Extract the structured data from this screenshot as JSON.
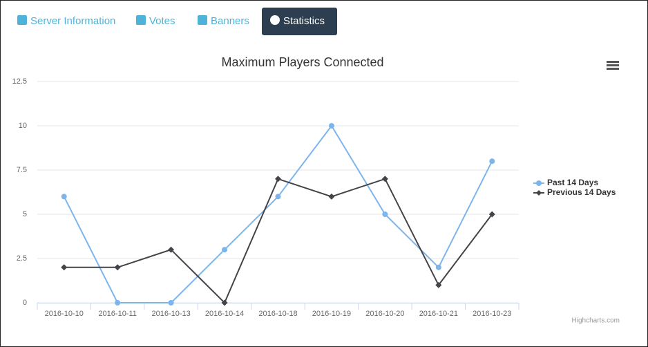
{
  "tabs": [
    "Server Information",
    "Votes",
    "Banners",
    "Statistics"
  ],
  "chart_data": {
    "type": "line",
    "title": "Maximum Players Connected",
    "categories": [
      "2016-10-10",
      "2016-10-11",
      "2016-10-13",
      "2016-10-14",
      "2016-10-18",
      "2016-10-19",
      "2016-10-20",
      "2016-10-21",
      "2016-10-23"
    ],
    "series": [
      {
        "name": "Past 14 Days",
        "color": "#7cb5ec",
        "marker": "circle",
        "values": [
          6,
          0,
          0,
          3,
          6,
          10,
          5,
          2,
          8
        ]
      },
      {
        "name": "Previous 14 Days",
        "color": "#434348",
        "marker": "diamond",
        "values": [
          2,
          2,
          3,
          0,
          7,
          6,
          7,
          1,
          5
        ]
      }
    ],
    "ylim": [
      0,
      12.5
    ],
    "yticks": [
      0,
      2.5,
      5,
      7.5,
      10,
      12.5
    ],
    "grid": true,
    "legend": "right",
    "credits": "Highcharts.com"
  }
}
